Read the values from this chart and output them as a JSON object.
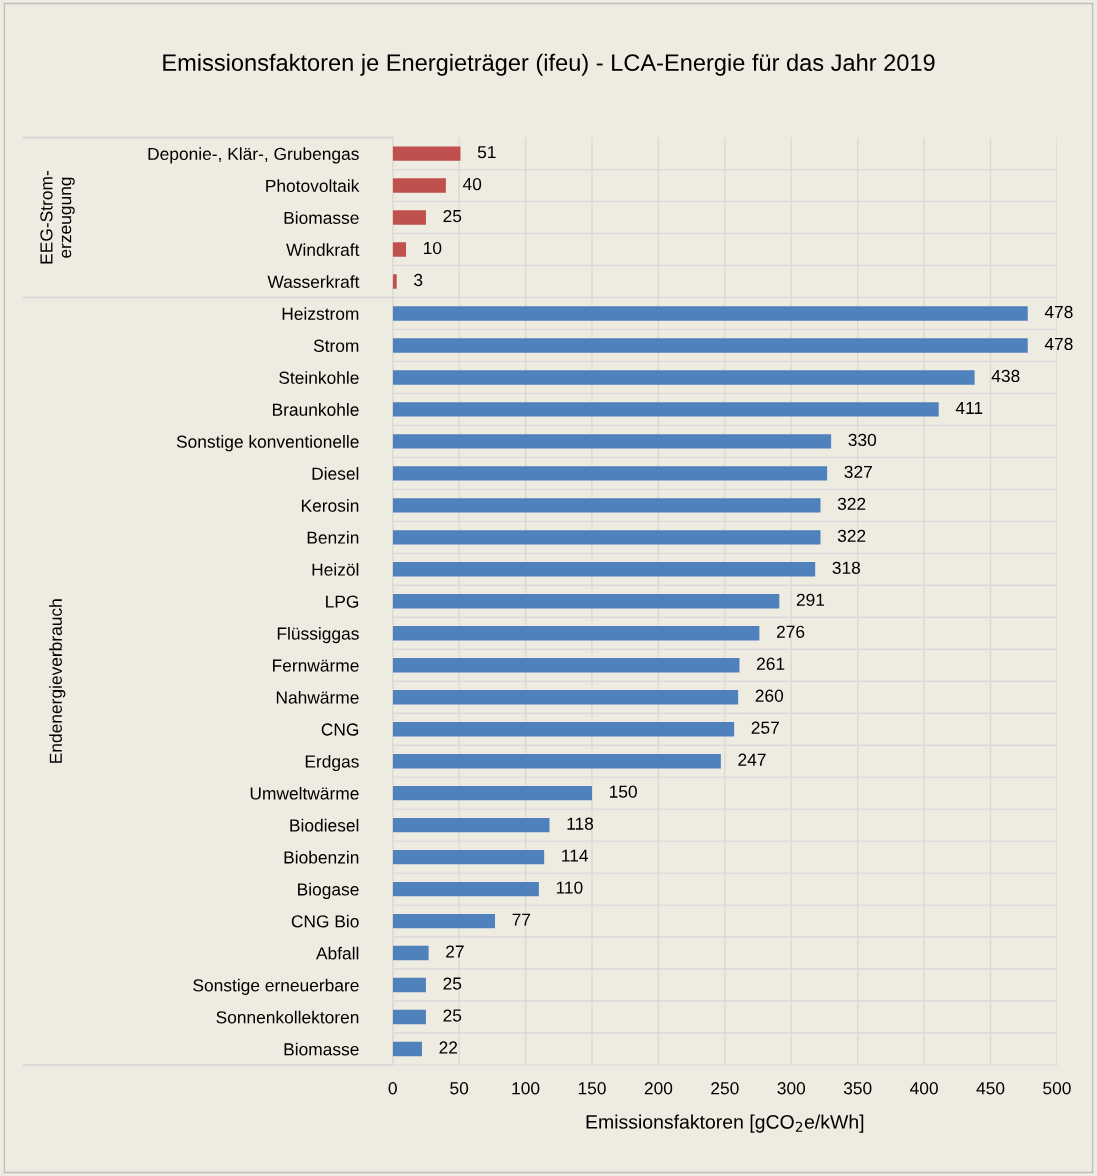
{
  "chart_data": {
    "type": "bar",
    "orientation": "horizontal",
    "title": "Emissionsfaktoren je Energieträger (ifeu) - LCA-Energie für das Jahr 2019",
    "xlabel": "Emissionsfaktoren [gCO$_{2}$e/kWh]",
    "categories": [
      "Deponie-, Klär-, Grubengas",
      "Photovoltaik",
      "Biomasse",
      "Windkraft",
      "Wasserkraft",
      "Heizstrom",
      "Strom",
      "Steinkohle",
      "Braunkohle",
      "Sonstige konventionelle",
      "Diesel",
      "Kerosin",
      "Benzin",
      "Heizöl",
      "LPG",
      "Flüssiggas",
      "Fernwärme",
      "Nahwärme",
      "CNG",
      "Erdgas",
      "Umweltwärme",
      "Biodiesel",
      "Biobenzin",
      "Biogase",
      "CNG Bio",
      "Abfall",
      "Sonstige erneuerbare",
      "Sonnenkollektoren",
      "Biomasse"
    ],
    "values": [
      51,
      40,
      25,
      10,
      3,
      478,
      478,
      438,
      411,
      330,
      327,
      322,
      322,
      318,
      291,
      276,
      261,
      260,
      257,
      247,
      150,
      118,
      114,
      110,
      77,
      27,
      25,
      25,
      22
    ],
    "colors": [
      "#c0504d",
      "#c0504d",
      "#c0504d",
      "#c0504d",
      "#c0504d",
      "#4f81bd",
      "#4f81bd",
      "#4f81bd",
      "#4f81bd",
      "#4f81bd",
      "#4f81bd",
      "#4f81bd",
      "#4f81bd",
      "#4f81bd",
      "#4f81bd",
      "#4f81bd",
      "#4f81bd",
      "#4f81bd",
      "#4f81bd",
      "#4f81bd",
      "#4f81bd",
      "#4f81bd",
      "#4f81bd",
      "#4f81bd",
      "#4f81bd",
      "#4f81bd",
      "#4f81bd",
      "#4f81bd",
      "#4f81bd"
    ],
    "annotations": [
      "EEG-Strom-\nerzeugung",
      "Endenergieverbrauch"
    ],
    "xlim": [
      0,
      500
    ],
    "xticks": [
      0,
      50,
      100,
      150,
      200,
      250,
      300,
      350,
      400,
      450,
      500
    ],
    "grid": true,
    "data_labels": true
  }
}
